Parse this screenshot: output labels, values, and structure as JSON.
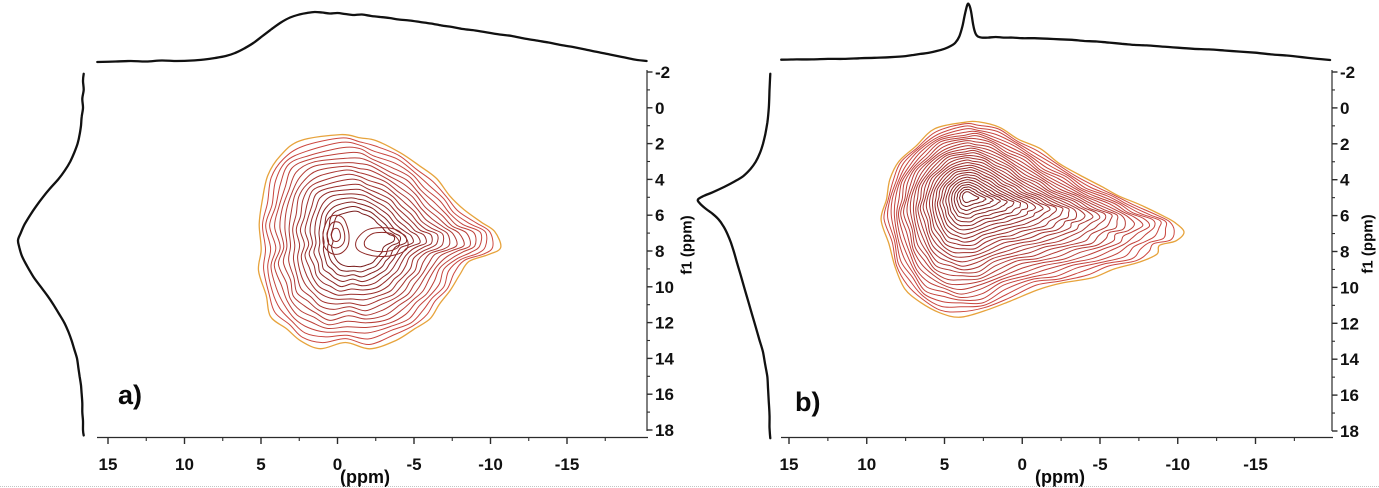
{
  "colors": {
    "background": "#ffffff",
    "trace": "#111111",
    "axis": "#2b2b2b",
    "tick_label": "#111111",
    "contour_outer": "#e7a33c",
    "contour_red_start": "#cd4840",
    "contour_red_end": "#7a1d1d"
  },
  "chart_data": [
    {
      "id": "a",
      "type": "contour",
      "panel_label": "a)",
      "xlabel": "(ppm)",
      "ylabel": "f1 (ppm)",
      "x_axis": {
        "unit": "ppm",
        "direction": "reversed",
        "range": [
          15.8,
          -20.5
        ],
        "ticks": [
          15,
          10,
          5,
          0,
          -5,
          -10,
          -15
        ],
        "minor_ticks": [
          12.5,
          7.5,
          2.5,
          -2.5,
          -7.5,
          -12.5,
          -17.5
        ]
      },
      "y_axis": {
        "unit": "ppm",
        "direction": "down",
        "range": [
          -2,
          18
        ],
        "ticks": [
          -2,
          0,
          2,
          4,
          6,
          8,
          10,
          12,
          14,
          16,
          18
        ],
        "minor_ticks": [
          -1,
          1,
          3,
          5,
          7,
          9,
          11,
          13,
          15,
          17
        ]
      },
      "peaks": [
        {
          "f2": 0.1,
          "f1": 7.1
        },
        {
          "f2": -2.9,
          "f1": 7.5
        }
      ],
      "top_projection": [
        [
          15.7,
          0.0
        ],
        [
          14.5,
          0.01
        ],
        [
          13.5,
          0.02
        ],
        [
          12.5,
          0.01
        ],
        [
          11.5,
          0.03
        ],
        [
          10.5,
          0.02
        ],
        [
          9.5,
          0.03
        ],
        [
          8.7,
          0.05
        ],
        [
          8.0,
          0.08
        ],
        [
          7.3,
          0.12
        ],
        [
          6.7,
          0.18
        ],
        [
          6.1,
          0.27
        ],
        [
          5.5,
          0.38
        ],
        [
          4.9,
          0.52
        ],
        [
          4.3,
          0.66
        ],
        [
          3.7,
          0.79
        ],
        [
          3.1,
          0.89
        ],
        [
          2.5,
          0.95
        ],
        [
          2.0,
          0.98
        ],
        [
          1.5,
          1.0
        ],
        [
          1.0,
          0.99
        ],
        [
          0.5,
          0.97
        ],
        [
          0.0,
          0.98
        ],
        [
          -0.5,
          0.96
        ],
        [
          -1.0,
          0.94
        ],
        [
          -1.6,
          0.95
        ],
        [
          -2.2,
          0.92
        ],
        [
          -2.8,
          0.9
        ],
        [
          -3.4,
          0.88
        ],
        [
          -4.0,
          0.85
        ],
        [
          -4.7,
          0.83
        ],
        [
          -5.4,
          0.8
        ],
        [
          -6.1,
          0.77
        ],
        [
          -6.8,
          0.73
        ],
        [
          -7.5,
          0.7
        ],
        [
          -8.2,
          0.66
        ],
        [
          -9.0,
          0.63
        ],
        [
          -9.8,
          0.59
        ],
        [
          -10.6,
          0.55
        ],
        [
          -11.4,
          0.52
        ],
        [
          -12.2,
          0.47
        ],
        [
          -13.0,
          0.43
        ],
        [
          -13.8,
          0.39
        ],
        [
          -14.6,
          0.34
        ],
        [
          -15.4,
          0.3
        ],
        [
          -16.2,
          0.25
        ],
        [
          -17.0,
          0.2
        ],
        [
          -17.8,
          0.15
        ],
        [
          -18.6,
          0.1
        ],
        [
          -19.4,
          0.05
        ],
        [
          -20.2,
          0.02
        ]
      ],
      "left_projection": [
        [
          -1.9,
          0.02
        ],
        [
          -1.5,
          0.03
        ],
        [
          -1.0,
          0.02
        ],
        [
          -0.5,
          0.04
        ],
        [
          0.0,
          0.03
        ],
        [
          0.5,
          0.05
        ],
        [
          1.0,
          0.06
        ],
        [
          1.5,
          0.08
        ],
        [
          2.0,
          0.11
        ],
        [
          2.5,
          0.16
        ],
        [
          3.0,
          0.22
        ],
        [
          3.5,
          0.3
        ],
        [
          4.0,
          0.4
        ],
        [
          4.5,
          0.52
        ],
        [
          5.0,
          0.63
        ],
        [
          5.5,
          0.73
        ],
        [
          6.0,
          0.82
        ],
        [
          6.5,
          0.9
        ],
        [
          7.0,
          0.96
        ],
        [
          7.4,
          1.0
        ],
        [
          7.8,
          0.98
        ],
        [
          8.2,
          0.95
        ],
        [
          8.6,
          0.9
        ],
        [
          9.0,
          0.84
        ],
        [
          9.5,
          0.76
        ],
        [
          10.0,
          0.66
        ],
        [
          10.5,
          0.56
        ],
        [
          11.0,
          0.47
        ],
        [
          11.5,
          0.39
        ],
        [
          12.0,
          0.31
        ],
        [
          12.5,
          0.25
        ],
        [
          13.0,
          0.2
        ],
        [
          13.5,
          0.16
        ],
        [
          14.0,
          0.12
        ],
        [
          14.5,
          0.1
        ],
        [
          15.0,
          0.08
        ],
        [
          15.5,
          0.06
        ],
        [
          16.0,
          0.05
        ],
        [
          16.5,
          0.04
        ],
        [
          17.0,
          0.04
        ],
        [
          17.5,
          0.03
        ],
        [
          18.0,
          0.03
        ],
        [
          18.3,
          0.02
        ]
      ],
      "contour": {
        "levels": 18,
        "inner_scale": 0.26,
        "focus": [
          -1.3,
          7.3
        ],
        "boundary": [
          [
            -0.2,
            1.5
          ],
          [
            2.4,
            1.9
          ],
          [
            3.8,
            2.6
          ],
          [
            4.5,
            3.8
          ],
          [
            4.9,
            5.2
          ],
          [
            5.2,
            6.5
          ],
          [
            4.9,
            7.9
          ],
          [
            5.2,
            9.1
          ],
          [
            4.7,
            10.5
          ],
          [
            4.3,
            11.6
          ],
          [
            3.4,
            12.4
          ],
          [
            2.4,
            13.0
          ],
          [
            1.1,
            13.4
          ],
          [
            -0.5,
            13.2
          ],
          [
            -2.1,
            13.4
          ],
          [
            -3.8,
            13.0
          ],
          [
            -5.1,
            12.4
          ],
          [
            -6.0,
            11.7
          ],
          [
            -6.7,
            11.0
          ],
          [
            -7.4,
            10.2
          ],
          [
            -7.9,
            9.3
          ],
          [
            -8.7,
            8.6
          ],
          [
            -9.8,
            8.2
          ],
          [
            -10.6,
            7.8
          ],
          [
            -10.4,
            6.9
          ],
          [
            -9.3,
            6.4
          ],
          [
            -8.3,
            5.7
          ],
          [
            -7.4,
            4.9
          ],
          [
            -6.4,
            4.0
          ],
          [
            -5.4,
            3.2
          ],
          [
            -4.1,
            2.5
          ],
          [
            -2.5,
            1.9
          ],
          [
            -1.5,
            1.6
          ]
        ],
        "eyes": [
          {
            "center": [
              0.1,
              7.1
            ],
            "rx": 0.85,
            "ry": 1.15,
            "rings": 3
          },
          {
            "center": [
              -2.9,
              7.5
            ],
            "rx": 1.7,
            "ry": 0.85,
            "rings": 2
          }
        ]
      }
    },
    {
      "id": "b",
      "type": "contour",
      "panel_label": "b)",
      "xlabel": "(ppm)",
      "ylabel": "f1 (ppm)",
      "x_axis": {
        "unit": "ppm",
        "direction": "reversed",
        "range": [
          15.8,
          -20.5
        ],
        "ticks": [
          15,
          10,
          5,
          0,
          -5,
          -10,
          -15
        ],
        "minor_ticks": [
          12.5,
          7.5,
          2.5,
          -2.5,
          -7.5,
          -12.5,
          -17.5
        ]
      },
      "y_axis": {
        "unit": "ppm",
        "direction": "down",
        "range": [
          -2,
          18
        ],
        "ticks": [
          -2,
          0,
          2,
          4,
          6,
          8,
          10,
          12,
          14,
          16,
          18
        ],
        "minor_ticks": [
          -1,
          1,
          3,
          5,
          7,
          9,
          11,
          13,
          15,
          17
        ]
      },
      "peaks": [
        {
          "f2": 3.5,
          "f1": 5.0
        }
      ],
      "top_projection": [
        [
          15.5,
          0.005
        ],
        [
          14.5,
          0.01
        ],
        [
          13.5,
          0.01
        ],
        [
          12.5,
          0.02
        ],
        [
          11.5,
          0.02
        ],
        [
          10.5,
          0.03
        ],
        [
          9.5,
          0.04
        ],
        [
          8.5,
          0.05
        ],
        [
          7.5,
          0.07
        ],
        [
          7.0,
          0.09
        ],
        [
          6.5,
          0.11
        ],
        [
          6.0,
          0.13
        ],
        [
          5.5,
          0.16
        ],
        [
          5.0,
          0.2
        ],
        [
          4.6,
          0.25
        ],
        [
          4.3,
          0.31
        ],
        [
          4.05,
          0.42
        ],
        [
          3.85,
          0.6
        ],
        [
          3.7,
          0.8
        ],
        [
          3.55,
          0.97
        ],
        [
          3.45,
          1.0
        ],
        [
          3.3,
          0.88
        ],
        [
          3.15,
          0.62
        ],
        [
          3.0,
          0.47
        ],
        [
          2.85,
          0.42
        ],
        [
          2.6,
          0.4
        ],
        [
          2.2,
          0.4
        ],
        [
          1.7,
          0.41
        ],
        [
          1.2,
          0.4
        ],
        [
          0.6,
          0.4
        ],
        [
          0.0,
          0.39
        ],
        [
          -0.8,
          0.39
        ],
        [
          -1.6,
          0.38
        ],
        [
          -2.4,
          0.37
        ],
        [
          -3.2,
          0.36
        ],
        [
          -4.0,
          0.34
        ],
        [
          -4.8,
          0.33
        ],
        [
          -5.6,
          0.31
        ],
        [
          -6.4,
          0.29
        ],
        [
          -7.2,
          0.27
        ],
        [
          -8.0,
          0.26
        ],
        [
          -9.0,
          0.24
        ],
        [
          -10.0,
          0.22
        ],
        [
          -11.0,
          0.2
        ],
        [
          -12.0,
          0.19
        ],
        [
          -13.0,
          0.17
        ],
        [
          -14.0,
          0.15
        ],
        [
          -15.0,
          0.13
        ],
        [
          -16.0,
          0.1
        ],
        [
          -17.0,
          0.08
        ],
        [
          -18.0,
          0.05
        ],
        [
          -19.0,
          0.02
        ],
        [
          -19.8,
          0.0
        ]
      ],
      "left_projection": [
        [
          -1.9,
          0.01
        ],
        [
          -1.0,
          0.02
        ],
        [
          0.0,
          0.03
        ],
        [
          0.8,
          0.05
        ],
        [
          1.5,
          0.08
        ],
        [
          2.0,
          0.11
        ],
        [
          2.5,
          0.15
        ],
        [
          3.0,
          0.21
        ],
        [
          3.4,
          0.28
        ],
        [
          3.8,
          0.38
        ],
        [
          4.1,
          0.5
        ],
        [
          4.4,
          0.64
        ],
        [
          4.7,
          0.8
        ],
        [
          4.9,
          0.92
        ],
        [
          5.1,
          1.0
        ],
        [
          5.3,
          0.98
        ],
        [
          5.6,
          0.9
        ],
        [
          5.9,
          0.8
        ],
        [
          6.2,
          0.72
        ],
        [
          6.6,
          0.65
        ],
        [
          7.0,
          0.6
        ],
        [
          7.5,
          0.55
        ],
        [
          8.0,
          0.51
        ],
        [
          8.7,
          0.46
        ],
        [
          9.4,
          0.41
        ],
        [
          10.1,
          0.36
        ],
        [
          10.8,
          0.31
        ],
        [
          11.5,
          0.26
        ],
        [
          12.2,
          0.21
        ],
        [
          12.9,
          0.16
        ],
        [
          13.6,
          0.11
        ],
        [
          14.3,
          0.08
        ],
        [
          15.0,
          0.05
        ],
        [
          15.7,
          0.04
        ],
        [
          16.4,
          0.03
        ],
        [
          17.1,
          0.02
        ],
        [
          17.8,
          0.02
        ],
        [
          18.4,
          0.01
        ]
      ],
      "contour": {
        "levels": 30,
        "inner_scale": 0.055,
        "focus": [
          3.55,
          4.9
        ],
        "boundary": [
          [
            3.7,
            0.8
          ],
          [
            5.6,
            1.2
          ],
          [
            6.9,
            2.1
          ],
          [
            7.9,
            3.0
          ],
          [
            8.5,
            4.0
          ],
          [
            8.8,
            5.1
          ],
          [
            9.0,
            6.2
          ],
          [
            8.6,
            7.6
          ],
          [
            8.2,
            8.9
          ],
          [
            7.5,
            10.0
          ],
          [
            6.6,
            10.9
          ],
          [
            5.3,
            11.4
          ],
          [
            4.0,
            11.6
          ],
          [
            2.4,
            11.4
          ],
          [
            0.8,
            10.7
          ],
          [
            -1.1,
            10.1
          ],
          [
            -2.7,
            9.8
          ],
          [
            -4.4,
            9.4
          ],
          [
            -6.0,
            9.0
          ],
          [
            -7.6,
            8.6
          ],
          [
            -8.5,
            8.1
          ],
          [
            -9.0,
            7.7
          ],
          [
            -9.8,
            7.4
          ],
          [
            -10.3,
            6.9
          ],
          [
            -10.0,
            6.4
          ],
          [
            -8.9,
            6.0
          ],
          [
            -7.6,
            5.4
          ],
          [
            -6.3,
            4.9
          ],
          [
            -5.0,
            4.4
          ],
          [
            -3.7,
            3.7
          ],
          [
            -2.4,
            3.1
          ],
          [
            -1.1,
            2.3
          ],
          [
            0.2,
            1.7
          ],
          [
            1.5,
            1.1
          ],
          [
            2.8,
            0.8
          ]
        ],
        "eyes": []
      }
    }
  ]
}
